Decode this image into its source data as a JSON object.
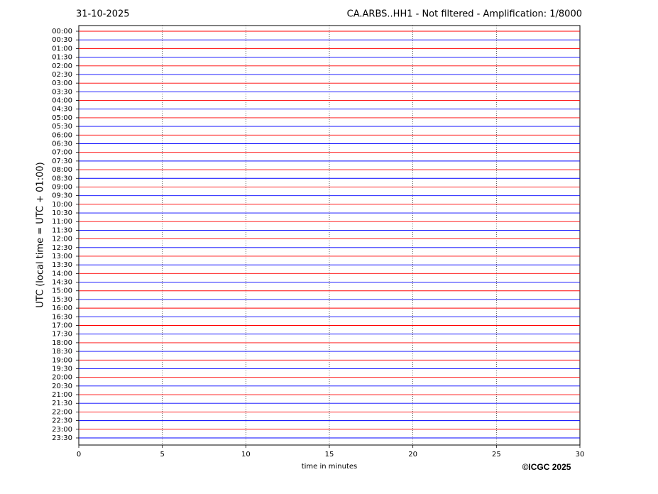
{
  "chart_data": {
    "type": "helicorder",
    "title_left": "31-10-2025",
    "title": "CA.ARBS..HH1 - Not filtered - Amplification: 1/8000",
    "y_label": "UTC (local time = UTC + 01:00)",
    "x_label": "time in minutes",
    "copyright": "©ICGC 2025",
    "categories": [
      "00:00",
      "00:30",
      "01:00",
      "01:30",
      "02:00",
      "02:30",
      "03:00",
      "03:30",
      "04:00",
      "04:30",
      "05:00",
      "05:30",
      "06:00",
      "06:30",
      "07:00",
      "07:30",
      "08:00",
      "08:30",
      "09:00",
      "09:30",
      "10:00",
      "10:30",
      "11:00",
      "11:30",
      "12:00",
      "12:30",
      "13:00",
      "13:30",
      "14:00",
      "14:30",
      "15:00",
      "15:30",
      "16:00",
      "16:30",
      "17:00",
      "17:30",
      "18:00",
      "18:30",
      "19:00",
      "19:30",
      "20:00",
      "20:30",
      "21:00",
      "21:30",
      "22:00",
      "22:30",
      "23:00",
      "23:30"
    ],
    "colors": [
      "#ff0000",
      "#0000ff"
    ],
    "xlim": [
      0,
      30
    ],
    "xticks": [
      0,
      5,
      10,
      15,
      20,
      25,
      30
    ],
    "grid": true
  }
}
